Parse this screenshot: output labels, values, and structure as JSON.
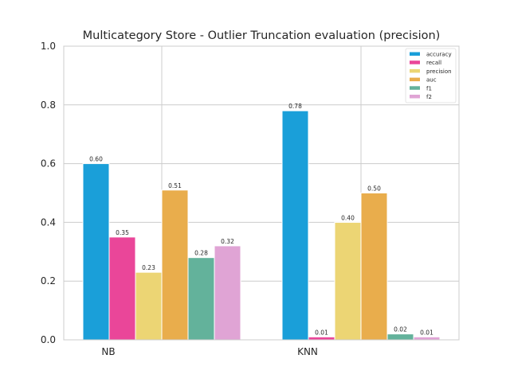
{
  "chart_data": {
    "type": "bar",
    "title": "Multicategory Store - Outlier Truncation evaluation (precision)",
    "xlabel": "",
    "ylabel": "",
    "categories": [
      "NB",
      "KNN"
    ],
    "ylim": [
      0.0,
      1.0
    ],
    "yticks": [
      "0.0",
      "0.2",
      "0.4",
      "0.6",
      "0.8",
      "1.0"
    ],
    "grid": true,
    "legend_position": "top-right",
    "series": [
      {
        "name": "accuracy",
        "color": "#1a9fd9",
        "values": [
          0.6,
          0.78
        ],
        "labels": [
          "0.60",
          "0.78"
        ]
      },
      {
        "name": "recall",
        "color": "#ea4699",
        "values": [
          0.35,
          0.01
        ],
        "labels": [
          "0.35",
          "0.01"
        ]
      },
      {
        "name": "precision",
        "color": "#ecd574",
        "values": [
          0.23,
          0.4
        ],
        "labels": [
          "0.23",
          "0.40"
        ]
      },
      {
        "name": "auc",
        "color": "#e9ad4c",
        "values": [
          0.51,
          0.5
        ],
        "labels": [
          "0.51",
          "0.50"
        ]
      },
      {
        "name": "f1",
        "color": "#63b29b",
        "values": [
          0.28,
          0.02
        ],
        "labels": [
          "0.28",
          "0.02"
        ]
      },
      {
        "name": "f2",
        "color": "#e0a4d5",
        "values": [
          0.32,
          0.01
        ],
        "labels": [
          "0.32",
          "0.01"
        ]
      }
    ]
  }
}
